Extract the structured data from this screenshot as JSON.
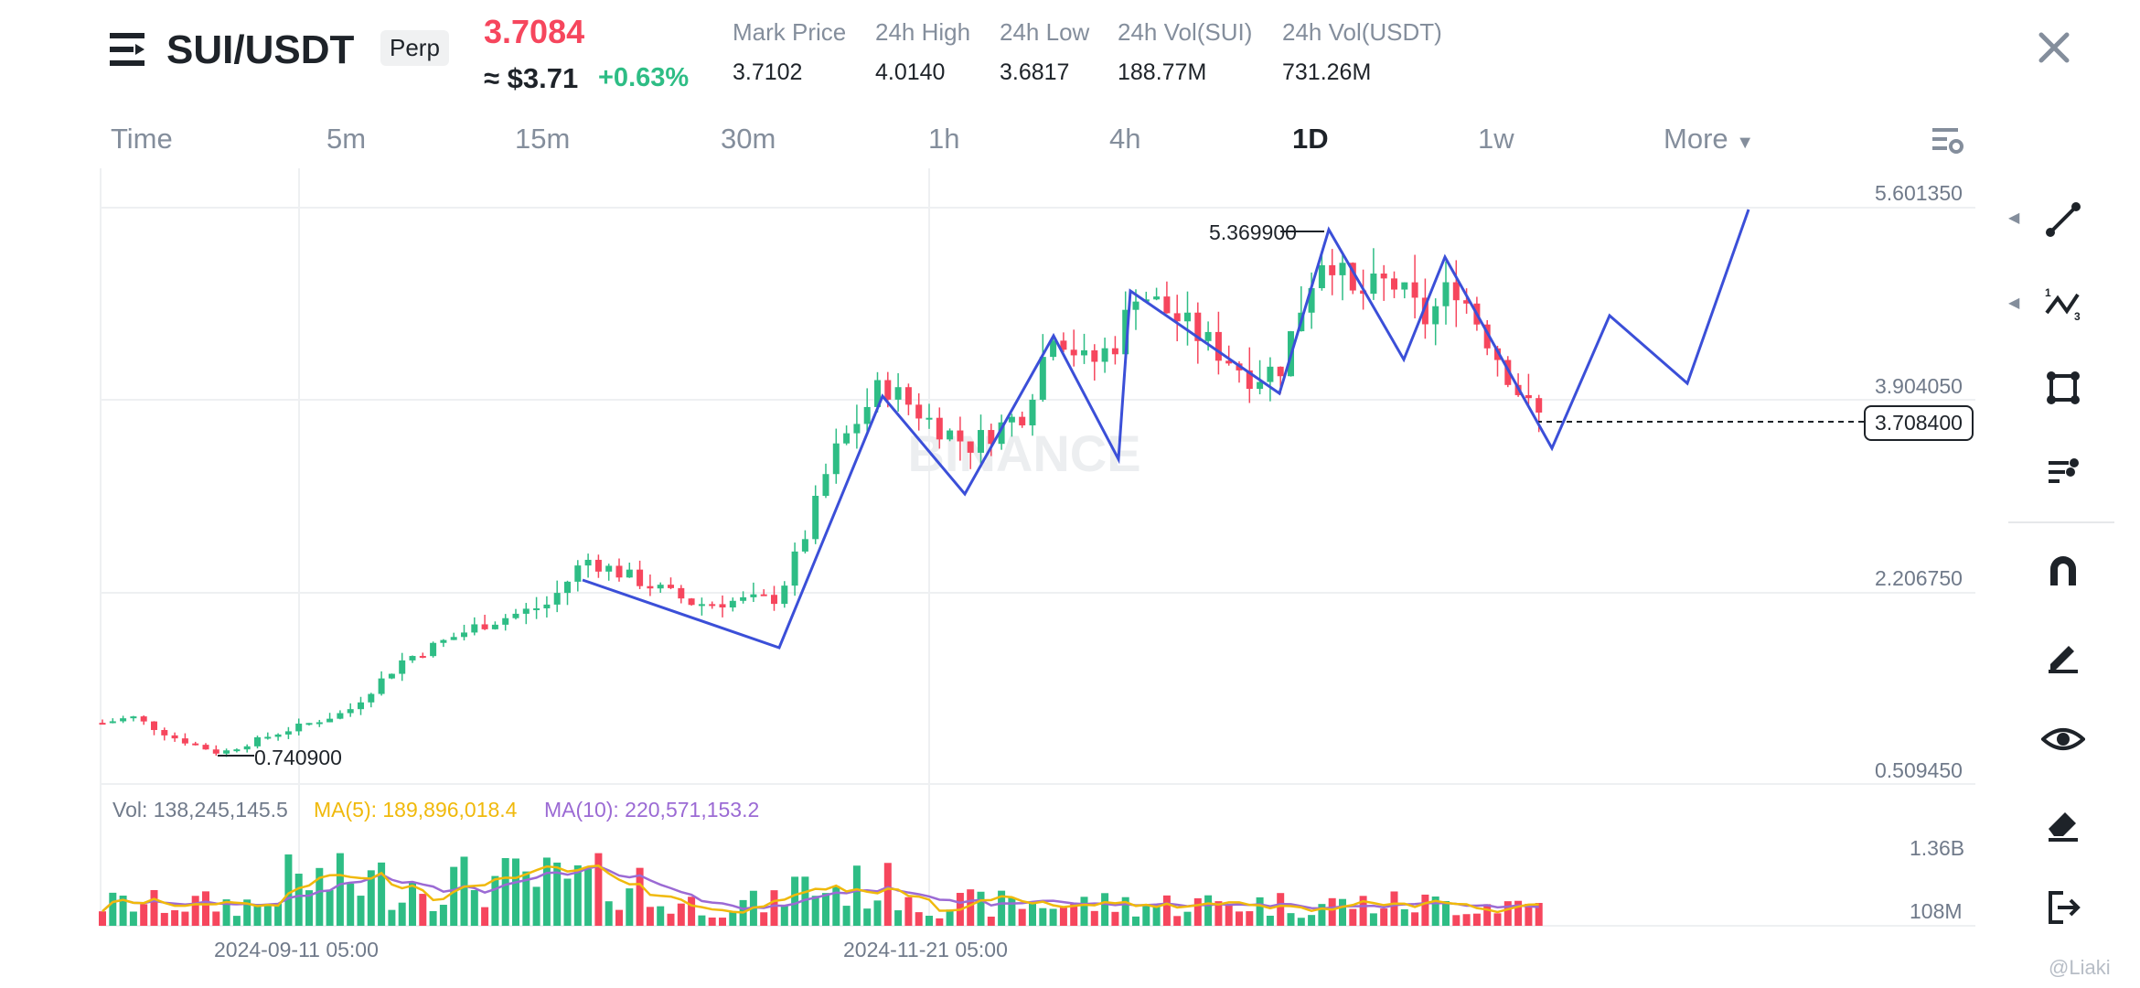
{
  "header": {
    "symbol": "SUI/USDT",
    "contract_badge": "Perp",
    "last_price": "3.7084",
    "usd_equiv": "≈ $3.71",
    "change_pct": "+0.63%",
    "stats": [
      {
        "label": "Mark Price",
        "value": "3.7102"
      },
      {
        "label": "24h High",
        "value": "4.0140"
      },
      {
        "label": "24h Low",
        "value": "3.6817"
      },
      {
        "label": "24h Vol(SUI)",
        "value": "188.77M"
      },
      {
        "label": "24h Vol(USDT)",
        "value": "731.26M"
      }
    ]
  },
  "timeframes": [
    {
      "label": "Time",
      "active": false
    },
    {
      "label": "5m",
      "active": false
    },
    {
      "label": "15m",
      "active": false
    },
    {
      "label": "30m",
      "active": false
    },
    {
      "label": "1h",
      "active": false
    },
    {
      "label": "4h",
      "active": false
    },
    {
      "label": "1D",
      "active": true
    },
    {
      "label": "1w",
      "active": false
    },
    {
      "label": "More",
      "active": false
    }
  ],
  "icons": {
    "menu": "menu-icon",
    "close": "close-icon",
    "settings": "chart-settings-icon",
    "tools": [
      "trend-line-icon",
      "fib-icon",
      "rectangle-icon",
      "brush-icon",
      "magnet-icon",
      "pencil-icon",
      "eye-icon",
      "eraser-icon",
      "exit-icon"
    ]
  },
  "chart": {
    "y_ticks": [
      "5.601350",
      "3.904050",
      "2.206750",
      "0.509450"
    ],
    "current_price_label": "3.708400",
    "high_marker": "5.369900",
    "low_marker": "0.740900",
    "x_ticks": [
      "2024-09-11 05:00",
      "2024-11-21 05:00"
    ],
    "watermark": "BINANCE",
    "volume": {
      "vol": "Vol: 138,245,145.5",
      "ma5": "MA(5): 189,896,018.4",
      "ma10": "MA(10): 220,571,153.2",
      "ticks": [
        "1.36B",
        "108M"
      ]
    }
  },
  "attribution": "@Liaki",
  "colors": {
    "up": "#2ebd85",
    "down": "#f6465d",
    "drawing": "#3b4fd8",
    "ma5": "#f0b90b",
    "ma10": "#9b6ad4",
    "price_red": "#f6465d"
  },
  "chart_data": {
    "type": "candlestick",
    "x_range": [
      "2024-08-14",
      "2025-01-03"
    ],
    "ylim": [
      0.50945,
      5.60135
    ],
    "high": 5.3699,
    "low": 0.7409,
    "last": 3.7084
  }
}
